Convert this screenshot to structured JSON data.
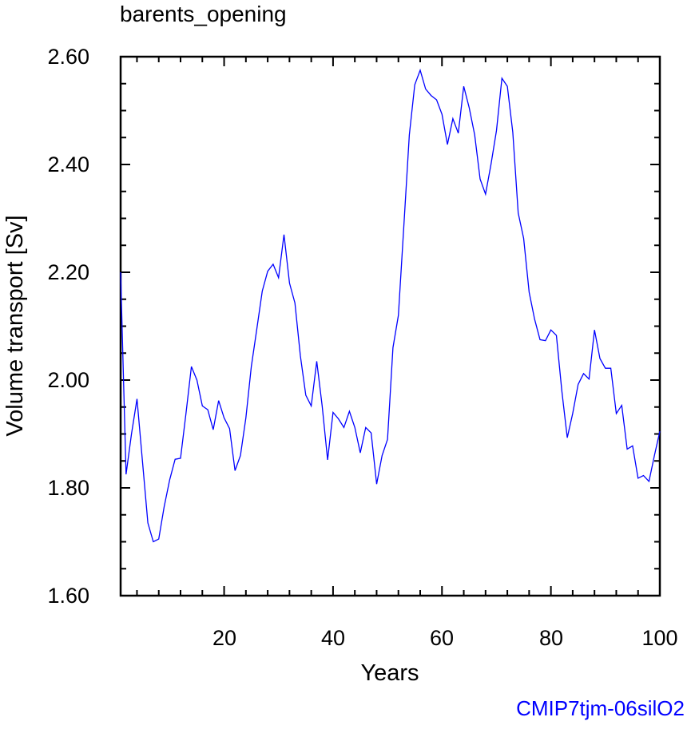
{
  "chart_data": {
    "type": "line",
    "title": "barents_opening",
    "xlabel": "Years",
    "ylabel": "Volume transport [Sv]",
    "xlim": [
      1,
      100
    ],
    "ylim": [
      1.6,
      2.6
    ],
    "x_ticks": [
      "20",
      "40",
      "60",
      "80",
      "100"
    ],
    "y_ticks": [
      "1.60",
      "1.80",
      "2.00",
      "2.20",
      "2.40",
      "2.60"
    ],
    "grid": false,
    "series_color": "#0000ff",
    "series": [
      {
        "x": [
          1,
          2,
          3,
          4,
          5,
          6,
          7,
          8,
          9,
          10,
          11,
          12,
          13,
          14,
          15,
          16,
          17,
          18,
          19,
          20,
          21,
          22,
          23,
          24,
          25,
          26,
          27,
          28,
          29,
          30,
          31,
          32,
          33,
          34,
          35,
          36,
          37,
          38,
          39,
          40,
          41,
          42,
          43,
          44,
          45,
          46,
          47,
          48,
          49,
          50,
          51,
          52,
          53,
          54,
          55,
          56,
          57,
          58,
          59,
          60,
          61,
          62,
          63,
          64,
          65,
          66,
          67,
          68,
          69,
          70,
          71,
          72,
          73,
          74,
          75,
          76,
          77,
          78,
          79,
          80,
          81,
          82,
          83,
          84,
          85,
          86,
          87,
          88,
          89,
          90,
          91,
          92,
          93,
          94,
          95,
          96,
          97,
          98,
          99,
          100
        ],
        "values": [
          2.2,
          1.825,
          1.9,
          1.965,
          1.85,
          1.735,
          1.7,
          1.705,
          1.765,
          1.815,
          1.853,
          1.855,
          1.938,
          2.025,
          2.0,
          1.952,
          1.945,
          1.908,
          1.962,
          1.93,
          1.91,
          1.832,
          1.86,
          1.93,
          2.025,
          2.095,
          2.165,
          2.202,
          2.215,
          2.19,
          2.27,
          2.18,
          2.143,
          2.045,
          1.972,
          1.952,
          2.035,
          1.952,
          1.852,
          1.94,
          1.928,
          1.912,
          1.942,
          1.912,
          1.865,
          1.912,
          1.902,
          1.807,
          1.86,
          1.89,
          2.06,
          2.12,
          2.285,
          2.455,
          2.548,
          2.575,
          2.54,
          2.528,
          2.52,
          2.493,
          2.437,
          2.485,
          2.458,
          2.545,
          2.505,
          2.455,
          2.373,
          2.345,
          2.4,
          2.463,
          2.56,
          2.545,
          2.46,
          2.31,
          2.263,
          2.163,
          2.113,
          2.075,
          2.073,
          2.093,
          2.083,
          1.98,
          1.893,
          1.938,
          1.992,
          2.012,
          2.002,
          2.093,
          2.04,
          2.022,
          2.022,
          1.938,
          1.953,
          1.872,
          1.878,
          1.818,
          1.823,
          1.812,
          1.86,
          1.905
        ]
      }
    ]
  },
  "credit": "CMIP7tjm-06silO2"
}
